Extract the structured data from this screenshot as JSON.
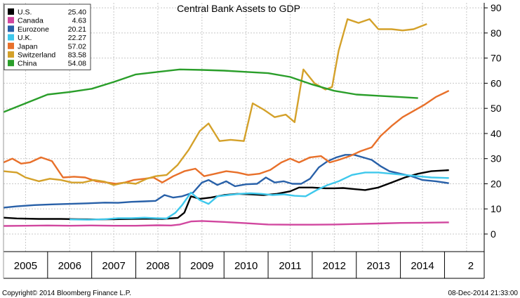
{
  "chart_data": {
    "type": "line",
    "title": "Central Bank Assets to GDP",
    "xlabel": "",
    "ylabel": "",
    "x_ticks": [
      "2005",
      "2006",
      "2007",
      "2008",
      "2009",
      "2010",
      "2011",
      "2012",
      "2013",
      "2014",
      "2"
    ],
    "y_ticks": [
      0,
      10,
      20,
      30,
      40,
      50,
      60,
      70,
      80,
      90
    ],
    "ylim": [
      -7,
      92
    ],
    "xlim": [
      2004.5,
      2015.4
    ],
    "grid": true,
    "legend_position": "top-left",
    "series": [
      {
        "name": "U.S.",
        "last_value": "25.40",
        "color": "#000000",
        "points": [
          [
            2004.5,
            6.5
          ],
          [
            2004.8,
            6.2
          ],
          [
            2005.3,
            6.0
          ],
          [
            2005.8,
            6.0
          ],
          [
            2006.2,
            5.9
          ],
          [
            2006.6,
            5.8
          ],
          [
            2007.0,
            5.9
          ],
          [
            2007.4,
            6.0
          ],
          [
            2007.8,
            6.1
          ],
          [
            2008.1,
            6.0
          ],
          [
            2008.45,
            6.4
          ],
          [
            2008.6,
            8.5
          ],
          [
            2008.75,
            15.0
          ],
          [
            2008.95,
            14.0
          ],
          [
            2009.2,
            14.5
          ],
          [
            2009.5,
            15.5
          ],
          [
            2009.8,
            16.0
          ],
          [
            2010.1,
            15.8
          ],
          [
            2010.4,
            15.5
          ],
          [
            2010.7,
            16.0
          ],
          [
            2011.0,
            17.0
          ],
          [
            2011.2,
            18.5
          ],
          [
            2011.5,
            18.5
          ],
          [
            2011.8,
            18.2
          ],
          [
            2012.0,
            18.2
          ],
          [
            2012.2,
            18.3
          ],
          [
            2012.5,
            17.8
          ],
          [
            2012.7,
            17.5
          ],
          [
            2013.0,
            18.5
          ],
          [
            2013.3,
            20.5
          ],
          [
            2013.6,
            22.5
          ],
          [
            2013.9,
            24.0
          ],
          [
            2014.2,
            25.0
          ],
          [
            2014.6,
            25.4
          ]
        ]
      },
      {
        "name": "Canada",
        "last_value": "4.63",
        "color": "#d1479f",
        "points": [
          [
            2004.5,
            3.2
          ],
          [
            2005.0,
            3.3
          ],
          [
            2005.5,
            3.4
          ],
          [
            2006.0,
            3.3
          ],
          [
            2006.5,
            3.4
          ],
          [
            2007.0,
            3.3
          ],
          [
            2007.5,
            3.3
          ],
          [
            2008.0,
            3.5
          ],
          [
            2008.3,
            3.4
          ],
          [
            2008.5,
            3.8
          ],
          [
            2008.75,
            5.0
          ],
          [
            2009.0,
            5.2
          ],
          [
            2009.5,
            4.8
          ],
          [
            2010.0,
            4.3
          ],
          [
            2010.5,
            3.8
          ],
          [
            2011.0,
            3.7
          ],
          [
            2011.5,
            3.7
          ],
          [
            2012.0,
            3.8
          ],
          [
            2012.5,
            4.0
          ],
          [
            2013.0,
            4.2
          ],
          [
            2013.5,
            4.4
          ],
          [
            2014.0,
            4.5
          ],
          [
            2014.6,
            4.63
          ]
        ]
      },
      {
        "name": "Eurozone",
        "last_value": "20.21",
        "color": "#2860a8",
        "points": [
          [
            2004.5,
            10.5
          ],
          [
            2004.8,
            11.0
          ],
          [
            2005.2,
            11.5
          ],
          [
            2005.6,
            11.8
          ],
          [
            2006.0,
            12.0
          ],
          [
            2006.4,
            12.2
          ],
          [
            2006.8,
            12.5
          ],
          [
            2007.1,
            12.4
          ],
          [
            2007.4,
            12.8
          ],
          [
            2007.7,
            13.0
          ],
          [
            2007.95,
            13.2
          ],
          [
            2008.15,
            15.5
          ],
          [
            2008.35,
            14.5
          ],
          [
            2008.55,
            15.0
          ],
          [
            2008.8,
            16.5
          ],
          [
            2009.0,
            20.5
          ],
          [
            2009.15,
            21.5
          ],
          [
            2009.35,
            19.5
          ],
          [
            2009.55,
            21.0
          ],
          [
            2009.75,
            19.0
          ],
          [
            2010.0,
            19.8
          ],
          [
            2010.25,
            20.0
          ],
          [
            2010.45,
            22.5
          ],
          [
            2010.65,
            20.5
          ],
          [
            2010.85,
            21.0
          ],
          [
            2011.05,
            20.0
          ],
          [
            2011.25,
            20.0
          ],
          [
            2011.45,
            22.0
          ],
          [
            2011.65,
            26.5
          ],
          [
            2011.85,
            29.0
          ],
          [
            2012.05,
            30.5
          ],
          [
            2012.25,
            31.5
          ],
          [
            2012.45,
            31.5
          ],
          [
            2012.65,
            30.5
          ],
          [
            2012.85,
            29.5
          ],
          [
            2013.05,
            27.0
          ],
          [
            2013.25,
            25.0
          ],
          [
            2013.5,
            24.0
          ],
          [
            2013.75,
            23.0
          ],
          [
            2014.0,
            21.5
          ],
          [
            2014.3,
            21.0
          ],
          [
            2014.6,
            20.21
          ]
        ]
      },
      {
        "name": "U.K.",
        "last_value": "22.27",
        "color": "#3ec8ec",
        "points": [
          [
            2006.0,
            5.8
          ],
          [
            2006.4,
            5.7
          ],
          [
            2006.8,
            5.9
          ],
          [
            2007.1,
            6.3
          ],
          [
            2007.4,
            6.3
          ],
          [
            2007.7,
            6.5
          ],
          [
            2007.95,
            6.3
          ],
          [
            2008.2,
            6.2
          ],
          [
            2008.4,
            8.5
          ],
          [
            2008.55,
            11.5
          ],
          [
            2008.75,
            16.5
          ],
          [
            2008.95,
            13.5
          ],
          [
            2009.15,
            12.0
          ],
          [
            2009.35,
            15.0
          ],
          [
            2009.6,
            15.5
          ],
          [
            2009.85,
            16.0
          ],
          [
            2010.1,
            16.2
          ],
          [
            2010.35,
            16.0
          ],
          [
            2010.6,
            15.5
          ],
          [
            2010.85,
            15.8
          ],
          [
            2011.1,
            15.2
          ],
          [
            2011.35,
            15.0
          ],
          [
            2011.6,
            17.5
          ],
          [
            2011.85,
            19.5
          ],
          [
            2012.1,
            21.0
          ],
          [
            2012.4,
            23.5
          ],
          [
            2012.7,
            24.5
          ],
          [
            2013.0,
            24.5
          ],
          [
            2013.3,
            24.0
          ],
          [
            2013.6,
            23.5
          ],
          [
            2013.9,
            23.0
          ],
          [
            2014.2,
            22.5
          ],
          [
            2014.6,
            22.27
          ]
        ]
      },
      {
        "name": "Japan",
        "last_value": "57.02",
        "color": "#e8702a",
        "points": [
          [
            2004.5,
            28.5
          ],
          [
            2004.7,
            30.0
          ],
          [
            2004.9,
            28.0
          ],
          [
            2005.1,
            28.5
          ],
          [
            2005.35,
            30.5
          ],
          [
            2005.6,
            29.0
          ],
          [
            2005.85,
            22.5
          ],
          [
            2006.1,
            22.8
          ],
          [
            2006.35,
            22.5
          ],
          [
            2006.6,
            21.0
          ],
          [
            2006.85,
            20.5
          ],
          [
            2007.05,
            20.0
          ],
          [
            2007.25,
            20.5
          ],
          [
            2007.45,
            21.5
          ],
          [
            2007.7,
            22.0
          ],
          [
            2007.9,
            22.5
          ],
          [
            2008.1,
            20.5
          ],
          [
            2008.35,
            23.0
          ],
          [
            2008.6,
            25.0
          ],
          [
            2008.85,
            26.0
          ],
          [
            2009.05,
            23.0
          ],
          [
            2009.3,
            24.0
          ],
          [
            2009.55,
            25.0
          ],
          [
            2009.8,
            24.5
          ],
          [
            2010.05,
            23.5
          ],
          [
            2010.3,
            24.0
          ],
          [
            2010.55,
            25.5
          ],
          [
            2010.8,
            28.5
          ],
          [
            2011.0,
            30.0
          ],
          [
            2011.2,
            28.5
          ],
          [
            2011.45,
            30.5
          ],
          [
            2011.7,
            31.0
          ],
          [
            2011.9,
            28.5
          ],
          [
            2012.1,
            29.5
          ],
          [
            2012.35,
            31.0
          ],
          [
            2012.6,
            33.0
          ],
          [
            2012.85,
            34.5
          ],
          [
            2013.05,
            39.0
          ],
          [
            2013.3,
            43.0
          ],
          [
            2013.55,
            46.5
          ],
          [
            2013.8,
            49.0
          ],
          [
            2014.05,
            51.5
          ],
          [
            2014.3,
            54.5
          ],
          [
            2014.6,
            57.02
          ]
        ]
      },
      {
        "name": "Switzerland",
        "last_value": "83.58",
        "color": "#d4a12a",
        "points": [
          [
            2004.5,
            25.0
          ],
          [
            2004.8,
            24.5
          ],
          [
            2005.0,
            22.5
          ],
          [
            2005.3,
            21.0
          ],
          [
            2005.55,
            22.0
          ],
          [
            2005.8,
            21.5
          ],
          [
            2006.05,
            20.5
          ],
          [
            2006.3,
            20.5
          ],
          [
            2006.55,
            21.5
          ],
          [
            2006.8,
            20.8
          ],
          [
            2007.0,
            19.5
          ],
          [
            2007.25,
            20.5
          ],
          [
            2007.5,
            20.0
          ],
          [
            2007.75,
            22.0
          ],
          [
            2007.95,
            23.0
          ],
          [
            2008.2,
            23.5
          ],
          [
            2008.45,
            27.5
          ],
          [
            2008.7,
            33.5
          ],
          [
            2008.95,
            41.0
          ],
          [
            2009.15,
            44.0
          ],
          [
            2009.4,
            37.0
          ],
          [
            2009.65,
            37.5
          ],
          [
            2009.95,
            37.0
          ],
          [
            2010.15,
            52.0
          ],
          [
            2010.4,
            49.5
          ],
          [
            2010.65,
            46.5
          ],
          [
            2010.9,
            47.5
          ],
          [
            2011.1,
            44.5
          ],
          [
            2011.3,
            65.5
          ],
          [
            2011.55,
            60.0
          ],
          [
            2011.8,
            57.5
          ],
          [
            2011.95,
            58.5
          ],
          [
            2012.1,
            73.0
          ],
          [
            2012.3,
            85.5
          ],
          [
            2012.55,
            84.0
          ],
          [
            2012.8,
            85.5
          ],
          [
            2013.0,
            81.5
          ],
          [
            2013.3,
            81.5
          ],
          [
            2013.55,
            81.0
          ],
          [
            2013.8,
            81.5
          ],
          [
            2014.1,
            83.58
          ]
        ]
      },
      {
        "name": "China",
        "last_value": "54.08",
        "color": "#2a9e2a",
        "points": [
          [
            2004.5,
            48.5
          ],
          [
            2005.0,
            52.0
          ],
          [
            2005.5,
            55.5
          ],
          [
            2006.0,
            56.5
          ],
          [
            2006.5,
            57.8
          ],
          [
            2007.0,
            60.5
          ],
          [
            2007.5,
            63.5
          ],
          [
            2008.0,
            64.5
          ],
          [
            2008.5,
            65.5
          ],
          [
            2009.0,
            65.3
          ],
          [
            2009.5,
            65.0
          ],
          [
            2010.0,
            64.5
          ],
          [
            2010.5,
            64.0
          ],
          [
            2011.0,
            62.5
          ],
          [
            2011.5,
            59.5
          ],
          [
            2012.0,
            57.0
          ],
          [
            2012.5,
            55.5
          ],
          [
            2013.0,
            55.0
          ],
          [
            2013.5,
            54.5
          ],
          [
            2013.9,
            54.08
          ]
        ]
      }
    ]
  },
  "footer": {
    "copyright": "Copyright© 2014 Bloomberg Finance L.P.",
    "timestamp": "08-Dec-2014 21:33:00"
  }
}
